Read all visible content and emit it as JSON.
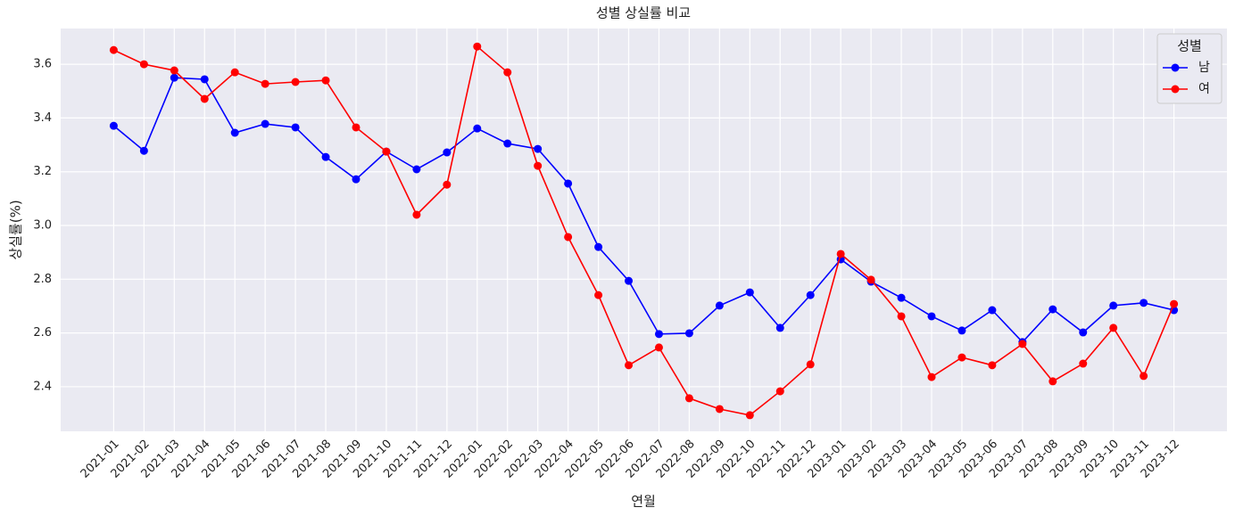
{
  "chart_data": {
    "type": "line",
    "title": "성별 상실률 비교",
    "x_label": "연월",
    "y_label": "상실률(%)",
    "categories": [
      "2021-01",
      "2021-02",
      "2021-03",
      "2021-04",
      "2021-05",
      "2021-06",
      "2021-07",
      "2021-08",
      "2021-09",
      "2021-10",
      "2021-11",
      "2021-12",
      "2022-01",
      "2022-02",
      "2022-03",
      "2022-04",
      "2022-05",
      "2022-06",
      "2022-07",
      "2022-08",
      "2022-09",
      "2022-10",
      "2022-11",
      "2022-12",
      "2023-01",
      "2023-02",
      "2023-03",
      "2023-04",
      "2023-05",
      "2023-06",
      "2023-07",
      "2023-08",
      "2023-09",
      "2023-10",
      "2023-11",
      "2023-12"
    ],
    "series": [
      {
        "name": "남",
        "color": "#0000ff",
        "values": [
          3.371,
          3.278,
          3.55,
          3.544,
          3.345,
          3.378,
          3.365,
          3.255,
          3.172,
          3.275,
          3.209,
          3.272,
          3.361,
          3.305,
          3.285,
          3.156,
          2.92,
          2.794,
          2.596,
          2.599,
          2.702,
          2.751,
          2.619,
          2.741,
          2.874,
          2.791,
          2.731,
          2.662,
          2.609,
          2.685,
          2.566,
          2.688,
          2.602,
          2.702,
          2.712,
          2.685
        ]
      },
      {
        "name": "여",
        "color": "#ff0000",
        "values": [
          3.653,
          3.6,
          3.577,
          3.471,
          3.57,
          3.527,
          3.534,
          3.54,
          3.365,
          3.275,
          3.04,
          3.152,
          3.666,
          3.57,
          3.222,
          2.957,
          2.741,
          2.48,
          2.546,
          2.357,
          2.317,
          2.294,
          2.383,
          2.483,
          2.894,
          2.798,
          2.662,
          2.436,
          2.509,
          2.48,
          2.559,
          2.42,
          2.486,
          2.619,
          2.44,
          2.708
        ]
      }
    ],
    "ylim": [
      2.234,
      3.733
    ],
    "yticks": [
      2.4,
      2.6,
      2.8,
      {
        "value": 3,
        "label": "3.0"
      },
      3.2,
      3.4,
      3.6
    ],
    "grid": true,
    "legend_title": "성별",
    "legend_position": "upper-right"
  }
}
